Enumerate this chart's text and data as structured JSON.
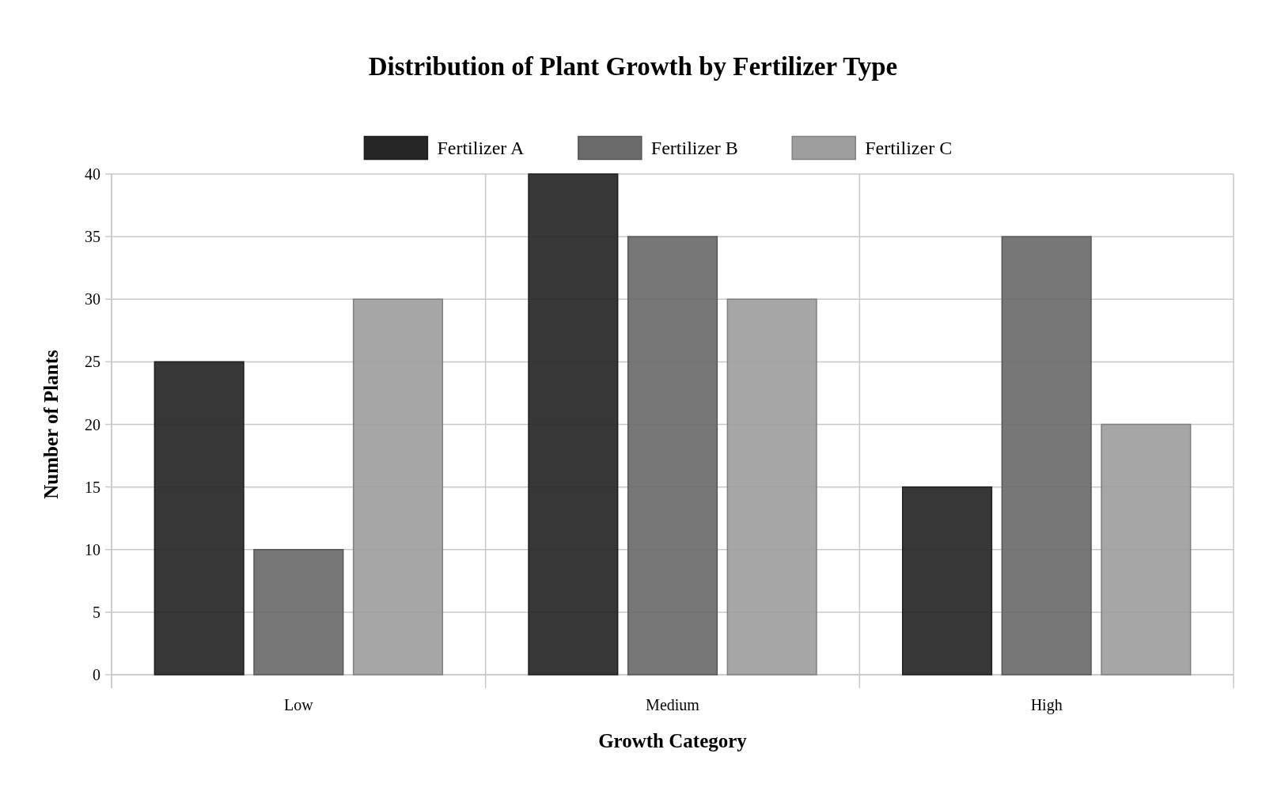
{
  "chart_data": {
    "type": "bar",
    "title": "Distribution of Plant Growth by Fertilizer Type",
    "xlabel": "Growth Category",
    "ylabel": "Number of Plants",
    "categories": [
      "Low",
      "Medium",
      "High"
    ],
    "series": [
      {
        "name": "Fertilizer A",
        "color": "#262626",
        "values": [
          25,
          40,
          15
        ]
      },
      {
        "name": "Fertilizer B",
        "color": "#6b6b6b",
        "values": [
          10,
          35,
          35
        ]
      },
      {
        "name": "Fertilizer C",
        "color": "#9e9e9e",
        "values": [
          30,
          30,
          20
        ]
      }
    ],
    "ylim": [
      0,
      40
    ],
    "yticks": [
      0,
      5,
      10,
      15,
      20,
      25,
      30,
      35,
      40
    ],
    "grid": true,
    "legend": "top"
  }
}
